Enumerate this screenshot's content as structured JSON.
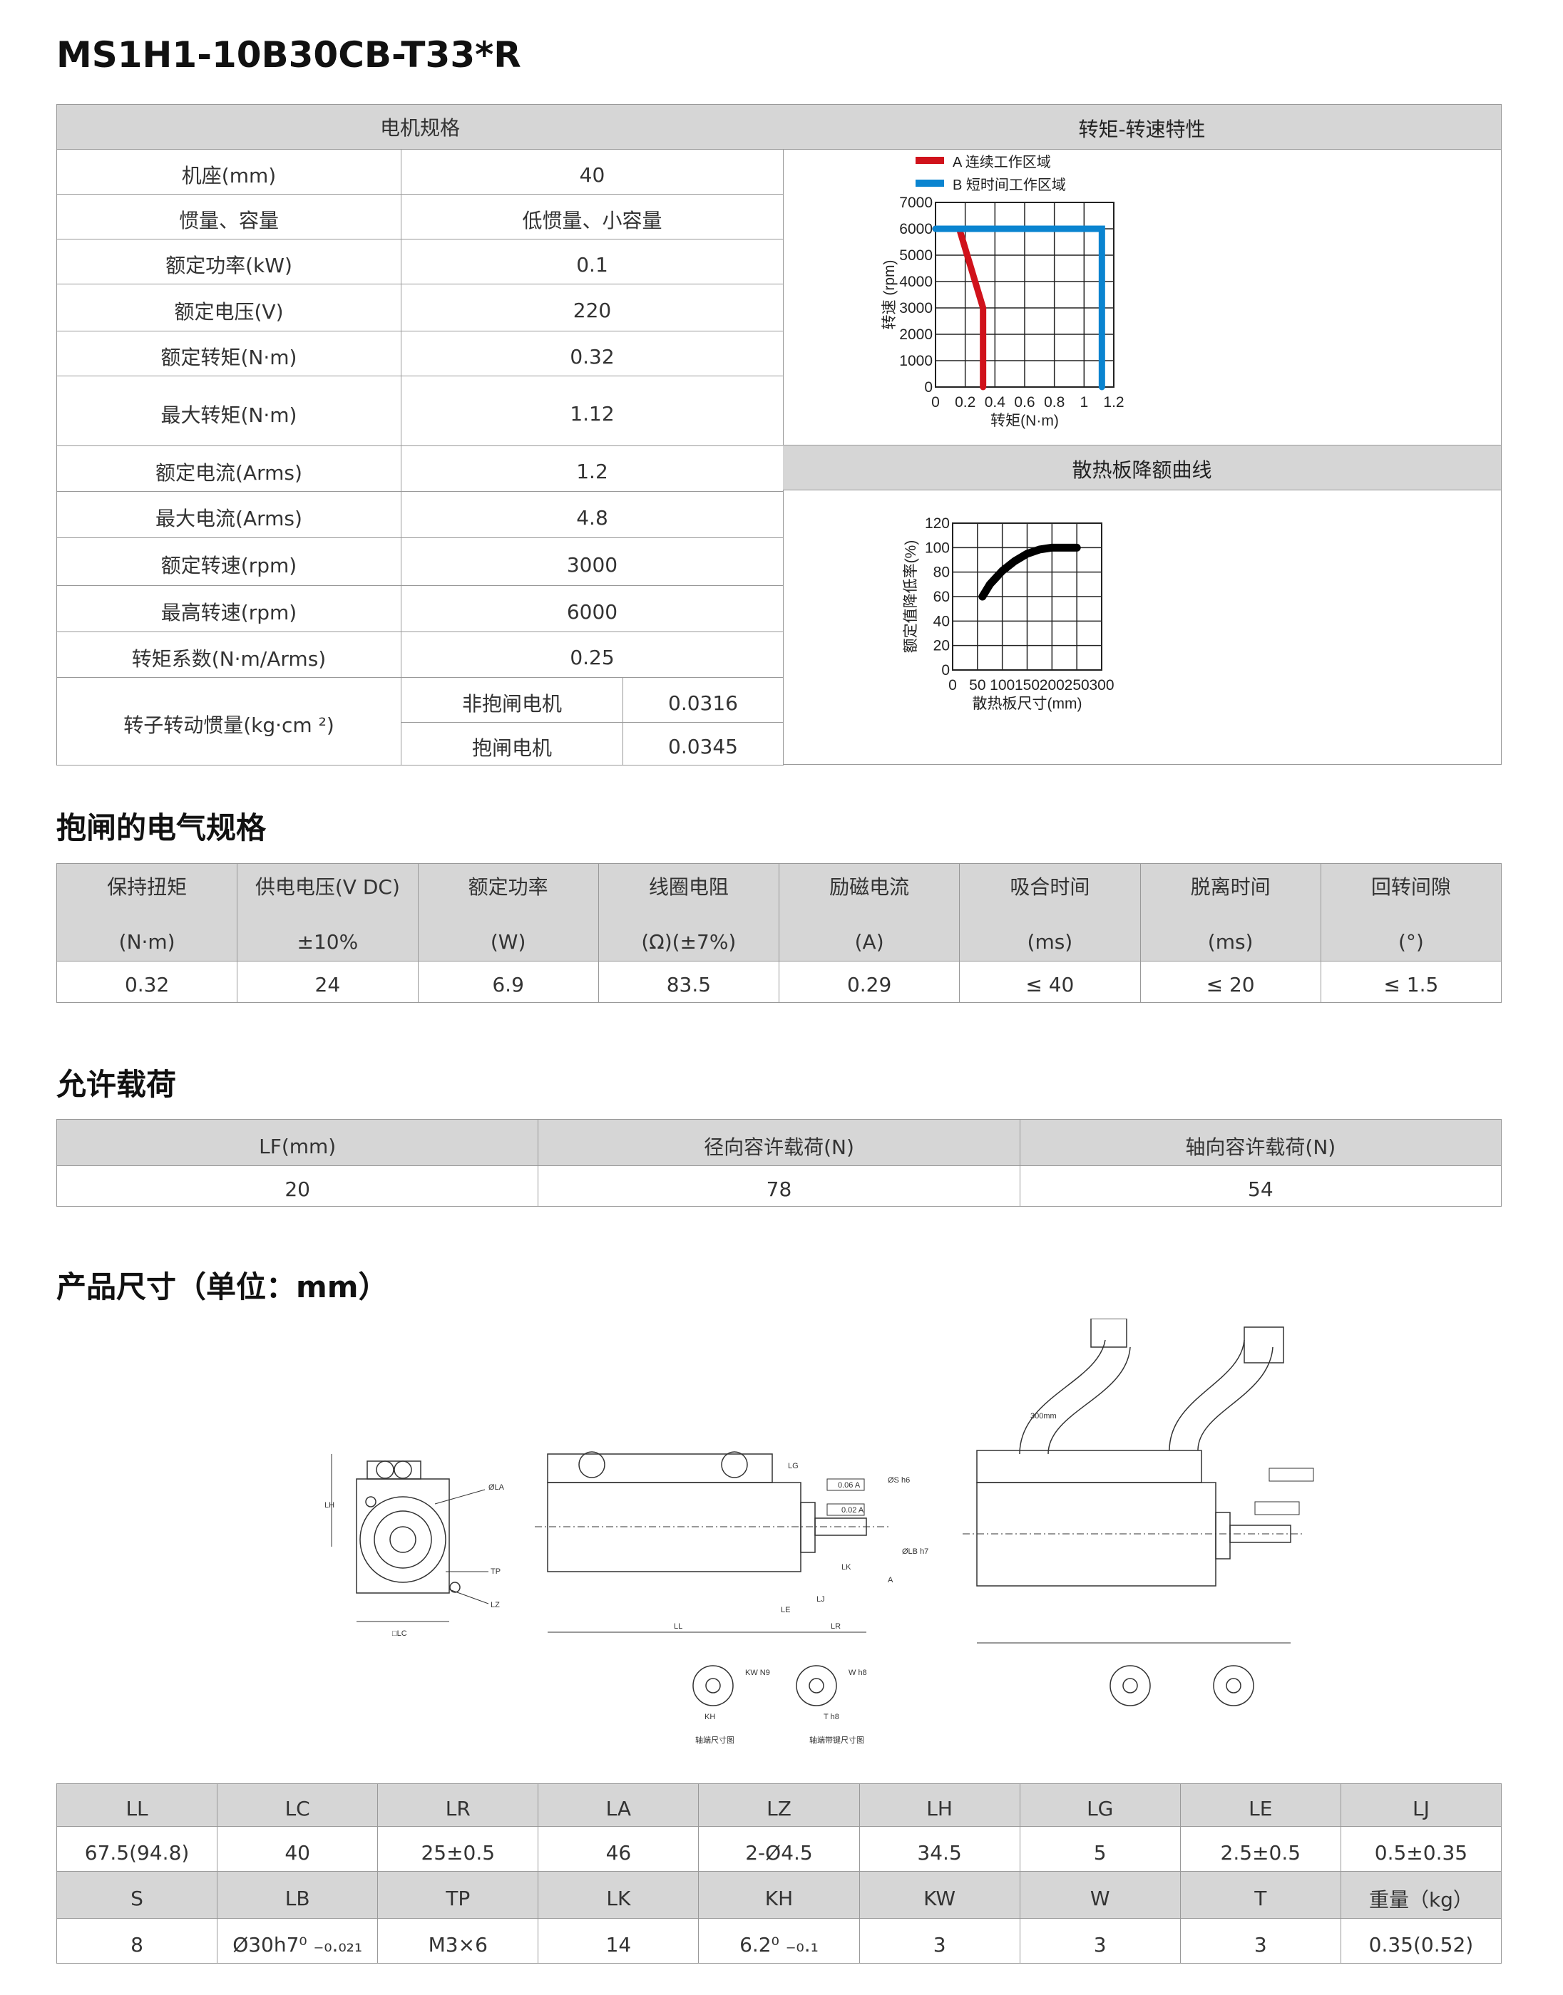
{
  "title": "MS1H1-10B30CB-T33*R",
  "spec": {
    "header_left": "电机规格",
    "rows": [
      [
        "机座(mm)",
        "40"
      ],
      [
        "惯量、容量",
        "低惯量、小容量"
      ],
      [
        "额定功率(kW)",
        "0.1"
      ],
      [
        "额定电压(V)",
        "220"
      ],
      [
        "额定转矩(N·m)",
        "0.32"
      ],
      [
        "最大转矩(N·m)",
        "1.12"
      ],
      [
        "额定电流(Arms)",
        "1.2"
      ],
      [
        "最大电流(Arms)",
        "4.8"
      ],
      [
        "额定转速(rpm)",
        "3000"
      ],
      [
        "最高转速(rpm)",
        "6000"
      ],
      [
        "转矩系数(N·m/Arms)",
        "0.25"
      ]
    ],
    "inertia_label": "转子转动惯量(kg·cm ²)",
    "inertia": [
      [
        "非抱闸电机",
        "0.0316"
      ],
      [
        "抱闸电机",
        "0.0345"
      ]
    ]
  },
  "chart_data": [
    {
      "type": "line",
      "title": "转矩-转速特性",
      "xlabel": "转矩(N·m)",
      "ylabel": "转速 (rpm)",
      "xlim": [
        0,
        1.2
      ],
      "ylim": [
        0,
        7000
      ],
      "xticks": [
        "0",
        "0.2",
        "0.4",
        "0.6",
        "0.8",
        "1",
        "1.2"
      ],
      "yticks": [
        "0",
        "1000",
        "2000",
        "3000",
        "4000",
        "5000",
        "6000",
        "7000"
      ],
      "grid": true,
      "legend": "top",
      "series": [
        {
          "name": "A 连续工作区域",
          "color": "#d0121b",
          "points": [
            [
              0,
              6000
            ],
            [
              0.16,
              6000
            ],
            [
              0.32,
              3000
            ],
            [
              0.32,
              0
            ]
          ]
        },
        {
          "name": "B 短时间工作区域",
          "color": "#0a84d0",
          "points": [
            [
              0,
              6000
            ],
            [
              1.12,
              6000
            ],
            [
              1.12,
              0
            ]
          ]
        }
      ]
    },
    {
      "type": "line",
      "title": "散热板降额曲线",
      "xlabel": "散热板尺寸(mm)",
      "ylabel": "额定值降低率(%)",
      "xlim": [
        0,
        300
      ],
      "ylim": [
        0,
        120
      ],
      "xticks": [
        "0",
        "50",
        "100",
        "150",
        "200",
        "250",
        "300"
      ],
      "yticks": [
        "0",
        "20",
        "40",
        "60",
        "80",
        "100",
        "120"
      ],
      "grid": true,
      "series": [
        {
          "color": "#000000",
          "points": [
            [
              60,
              60
            ],
            [
              75,
              70
            ],
            [
              100,
              81
            ],
            [
              125,
              89
            ],
            [
              150,
              95
            ],
            [
              175,
              98.5
            ],
            [
              200,
              100
            ],
            [
              250,
              100
            ]
          ]
        }
      ]
    }
  ],
  "brake": {
    "title": "抱闸的电气规格",
    "headers": [
      [
        "保持扭矩",
        "(N·m)"
      ],
      [
        "供电电压(V DC)",
        "±10%"
      ],
      [
        "额定功率",
        "(W)"
      ],
      [
        "线圈电阻",
        "(Ω)(±7%)"
      ],
      [
        "励磁电流",
        "(A)"
      ],
      [
        "吸合时间",
        "(ms)"
      ],
      [
        "脱离时间",
        "(ms)"
      ],
      [
        "回转间隙",
        "(°)"
      ]
    ],
    "values": [
      "0.32",
      "24",
      "6.9",
      "83.5",
      "0.29",
      "≤ 40",
      "≤ 20",
      "≤ 1.5"
    ]
  },
  "load": {
    "title": "允许载荷",
    "headers": [
      "LF(mm)",
      "径向容许载荷(N)",
      "轴向容许载荷(N)"
    ],
    "values": [
      "20",
      "78",
      "54"
    ]
  },
  "dims": {
    "title": "产品尺寸（单位：mm）",
    "labels": {
      "la": "ØLA",
      "tp": "TP",
      "lz": "LZ",
      "lh": "LH",
      "lc": "□LC",
      "ll": "LL",
      "lr": "LR",
      "le": "LE",
      "lj": "LJ",
      "lg": "LG",
      "lk": "LK",
      "tol1": "0.06 A",
      "tol2": "0.02 A",
      "s": "ØS h6",
      "lb": "ØLB h7",
      "cable": "300mm",
      "shaft": "轴端尺寸图",
      "shaftkey": "轴端带键尺寸图",
      "kh": "KH",
      "kw": "KW N9",
      "w": "W h8",
      "t": "T h8",
      "a": "A"
    },
    "row1_headers": [
      "LL",
      "LC",
      "LR",
      "LA",
      "LZ",
      "LH",
      "LG",
      "LE",
      "LJ"
    ],
    "row1_values": [
      "67.5(94.8)",
      "40",
      "25±0.5",
      "46",
      "2-Ø4.5",
      "34.5",
      "5",
      "2.5±0.5",
      "0.5±0.35"
    ],
    "row2_headers": [
      "S",
      "LB",
      "TP",
      "LK",
      "KH",
      "KW",
      "W",
      "T",
      "重量（kg）"
    ],
    "row2_values": [
      "8",
      "Ø30h7⁰ ₋₀.₀₂₁",
      "M3×6",
      "14",
      "6.2⁰ ₋₀.₁",
      "3",
      "3",
      "3",
      "0.35(0.52)"
    ]
  }
}
